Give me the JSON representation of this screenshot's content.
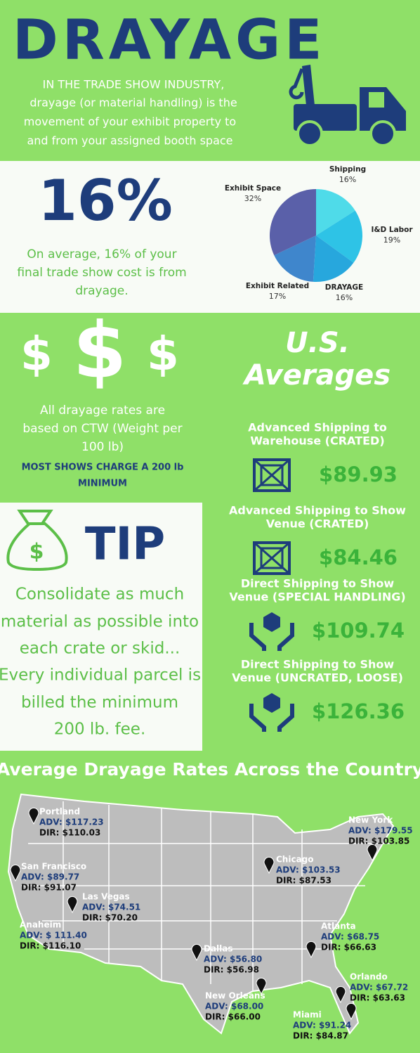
{
  "header": {
    "title": "DRAYAGE",
    "intro": [
      "IN THE TRADE SHOW INDUSTRY,",
      "drayage (or material handling) is the",
      "movement of your exhibit property to",
      "and from your assigned booth space"
    ]
  },
  "stat": {
    "value": "16%",
    "text": [
      "On average, 16% of your",
      "final trade show cost is from",
      "drayage."
    ]
  },
  "chart_data": {
    "type": "pie",
    "categories": [
      "Shipping",
      "I&D Labor",
      "DRAYAGE",
      "Exhibit Related",
      "Exhibit Space"
    ],
    "values": [
      16,
      19,
      16,
      17,
      32
    ],
    "value_labels": [
      "16%",
      "19%",
      "16%",
      "17%",
      "32%"
    ],
    "colors": [
      "#4fdbe9",
      "#2ec3e6",
      "#27a7dd",
      "#3f86cc",
      "#5a60a9"
    ]
  },
  "rates_intro": {
    "symbols": [
      "$",
      "$",
      "$"
    ],
    "text": [
      "All drayage rates are",
      "based on CTW (Weight per",
      "100 lb)"
    ],
    "note": [
      "MOST SHOWS CHARGE A 200 lb",
      "MINIMUM"
    ]
  },
  "averages": {
    "title": [
      "U.S.",
      "Averages"
    ],
    "items": [
      {
        "label": [
          "Advanced Shipping to",
          "Warehouse (CRATED)"
        ],
        "price": "$89.93"
      },
      {
        "label": [
          "Advanced Shipping to Show",
          "Venue (CRATED)"
        ],
        "price": "$84.46"
      },
      {
        "label": [
          "Direct Shipping to Show",
          "Venue (SPECIAL HANDLING)"
        ],
        "price": "$109.74"
      },
      {
        "label": [
          "Direct Shipping to Show",
          "Venue (UNCRATED, LOOSE)"
        ],
        "price": "$126.36"
      }
    ]
  },
  "tip": {
    "title": "TIP",
    "text": [
      "Consolidate as much",
      "material as possible into",
      "each crate or skid...",
      "Every individual parcel is",
      "billed the minimum",
      "200 lb. fee."
    ]
  },
  "map": {
    "title": "Average Drayage Rates Across the Country",
    "cities": [
      {
        "name": "Portland",
        "adv": "ADV: $117.23",
        "dir": "DIR: $110.03"
      },
      {
        "name": "San Francisco",
        "adv": "ADV: $89.77",
        "dir": "DIR:  $91.07"
      },
      {
        "name": "Las Vegas",
        "adv": "ADV: $74.51",
        "dir": "DIR: $70.20"
      },
      {
        "name": "Anaheim",
        "adv": "ADV: $ 111.40",
        "dir": "DIR: $116.10"
      },
      {
        "name": "Dallas",
        "adv": "ADV: $56.80",
        "dir": "DIR: $56.98"
      },
      {
        "name": "New Orleans",
        "adv": "ADV: $68.00",
        "dir": "DIR: $66.00"
      },
      {
        "name": "Chicago",
        "adv": "ADV: $103.53",
        "dir": "DIR: $87.53"
      },
      {
        "name": "New York",
        "adv": "ADV: $179.55",
        "dir": "DIR: $103.85"
      },
      {
        "name": "Atlanta",
        "adv": "ADV: $68.75",
        "dir": "DIR: $66.63"
      },
      {
        "name": "Orlando",
        "adv": "ADV: $67.72",
        "dir": "DIR: $63.63"
      },
      {
        "name": "Miami",
        "adv": "ADV: $91.24",
        "dir": "DIR: $84.87"
      }
    ]
  }
}
